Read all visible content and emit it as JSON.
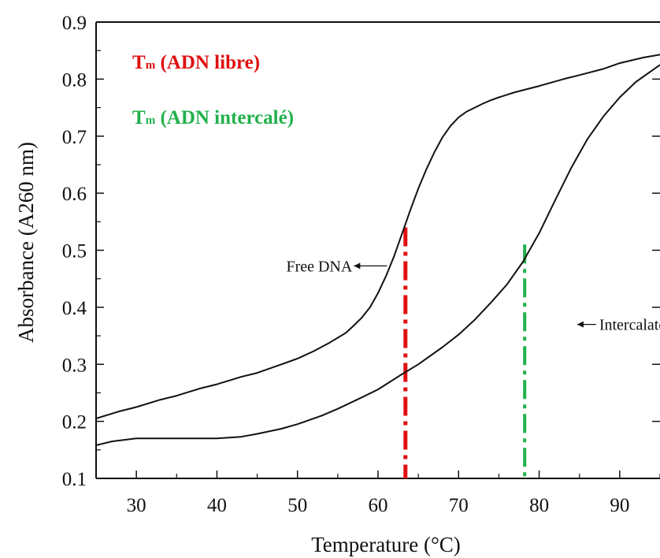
{
  "chart_data": {
    "type": "line",
    "xlabel": "Temperature (°C)",
    "ylabel": "Absorbance (A260 nm)",
    "xlim": [
      25,
      95
    ],
    "ylim": [
      0.1,
      0.9
    ],
    "x_ticks": [
      30,
      40,
      50,
      60,
      70,
      80,
      90
    ],
    "y_ticks": [
      0.1,
      0.2,
      0.3,
      0.4,
      0.5,
      0.6,
      0.7,
      0.8,
      0.9
    ],
    "series": [
      {
        "name": "Free DNA",
        "color": "#111111",
        "x": [
          25,
          28,
          30,
          33,
          35,
          38,
          40,
          43,
          45,
          48,
          50,
          52,
          54,
          56,
          57,
          58,
          59,
          60,
          61,
          62,
          63,
          64,
          65,
          66,
          67,
          68,
          69,
          70,
          71,
          72,
          73,
          74,
          75,
          77,
          80,
          83,
          85,
          88,
          90,
          93,
          95
        ],
        "y": [
          0.205,
          0.218,
          0.225,
          0.238,
          0.245,
          0.258,
          0.265,
          0.278,
          0.285,
          0.3,
          0.31,
          0.323,
          0.338,
          0.355,
          0.368,
          0.382,
          0.4,
          0.425,
          0.455,
          0.49,
          0.53,
          0.57,
          0.608,
          0.642,
          0.672,
          0.698,
          0.718,
          0.733,
          0.743,
          0.75,
          0.757,
          0.763,
          0.768,
          0.777,
          0.788,
          0.8,
          0.807,
          0.818,
          0.828,
          0.838,
          0.843
        ]
      },
      {
        "name": "Intercalated DNA",
        "color": "#111111",
        "x": [
          25,
          27,
          30,
          35,
          40,
          43,
          45,
          48,
          50,
          53,
          55,
          58,
          60,
          63,
          65,
          68,
          70,
          72,
          74,
          76,
          78,
          80,
          82,
          84,
          86,
          88,
          90,
          92,
          95
        ],
        "y": [
          0.158,
          0.165,
          0.17,
          0.17,
          0.17,
          0.173,
          0.178,
          0.187,
          0.195,
          0.21,
          0.222,
          0.242,
          0.256,
          0.283,
          0.3,
          0.33,
          0.352,
          0.378,
          0.408,
          0.44,
          0.48,
          0.53,
          0.588,
          0.645,
          0.695,
          0.735,
          0.768,
          0.795,
          0.825
        ]
      }
    ],
    "annotations": [
      {
        "text": "Free DNA",
        "arrow_to_x": 61.5
      },
      {
        "text": "Intercalated DNA",
        "arrow_to_x": 85.5
      }
    ],
    "markers": [
      {
        "label_main": "T",
        "label_sub": "m",
        "label_rest": " (ADN libre)",
        "color": "#e01010",
        "x": 63.4,
        "y_top": 0.54,
        "style": "dash-dot"
      },
      {
        "label_main": "T",
        "label_sub": "m",
        "label_rest": " (ADN intercalé)",
        "color": "#22b14c",
        "x": 78.2,
        "y_top": 0.51,
        "style": "dash-dot"
      }
    ]
  }
}
